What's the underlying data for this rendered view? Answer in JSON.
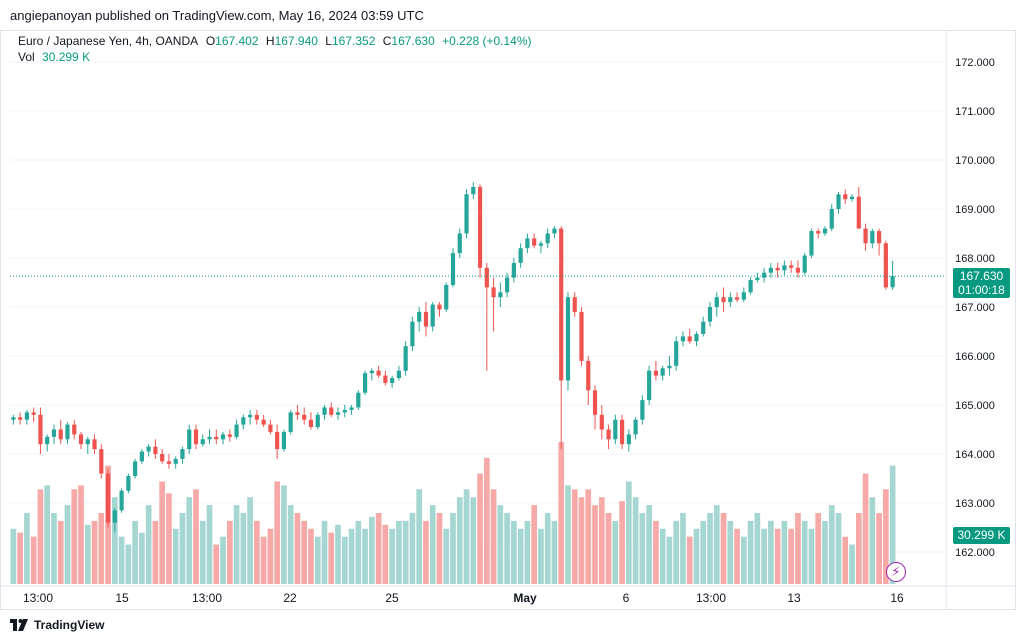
{
  "publish_line": "angiepanoyan published on TradingView.com, May 16, 2024 03:59 UTC",
  "legend": {
    "symbol": "Euro / Japanese Yen, 4h, OANDA",
    "o_label": "O",
    "o_value": "167.402",
    "h_label": "H",
    "h_value": "167.940",
    "l_label": "L",
    "l_value": "167.352",
    "c_label": "C",
    "c_value": "167.630",
    "change": "+0.228 (+0.14%)",
    "vol_label": "Vol",
    "vol_value": "30.299 K"
  },
  "price_axis": {
    "ticks": [
      "172.000",
      "171.000",
      "170.000",
      "169.000",
      "168.000",
      "167.000",
      "166.000",
      "165.000",
      "164.000",
      "163.000",
      "162.000"
    ],
    "current_price": "167.630",
    "countdown": "01:00:18",
    "volume_badge": "30.299 K"
  },
  "time_axis": {
    "labels": [
      "13:00",
      "15",
      "13:00",
      "22",
      "25",
      "May",
      "6",
      "13:00",
      "13",
      "16"
    ]
  },
  "footer": {
    "brand": "TradingView"
  },
  "colors": {
    "up": "#26a69a",
    "down": "#ef5350",
    "vol_up": "#a5d6d2",
    "vol_down": "#f7a9a7",
    "current": "#089981"
  },
  "chart_data": {
    "type": "candlestick",
    "symbol": "EUR/JPY",
    "interval": "4h",
    "ylim": [
      161.9,
      172.4
    ],
    "y_ticks": [
      162,
      163,
      164,
      165,
      166,
      167,
      168,
      169,
      170,
      171,
      172
    ],
    "x_labels": [
      "13:00",
      "15",
      "13:00",
      "22",
      "25",
      "May",
      "6",
      "13:00",
      "13",
      "16"
    ],
    "last_close": 167.63,
    "candles": [
      [
        164.7,
        164.8,
        164.6,
        164.75,
        14
      ],
      [
        164.75,
        164.85,
        164.6,
        164.7,
        13
      ],
      [
        164.7,
        164.9,
        164.6,
        164.85,
        18
      ],
      [
        164.85,
        164.95,
        164.65,
        164.8,
        12
      ],
      [
        164.8,
        164.95,
        164.0,
        164.2,
        24
      ],
      [
        164.2,
        164.4,
        164.05,
        164.35,
        25
      ],
      [
        164.35,
        164.6,
        164.2,
        164.5,
        18
      ],
      [
        164.5,
        164.7,
        164.2,
        164.3,
        16
      ],
      [
        164.3,
        164.65,
        164.2,
        164.6,
        20
      ],
      [
        164.6,
        164.7,
        164.3,
        164.4,
        24
      ],
      [
        164.4,
        164.45,
        164.1,
        164.2,
        25
      ],
      [
        164.2,
        164.35,
        164.0,
        164.3,
        15
      ],
      [
        164.3,
        164.4,
        164.0,
        164.1,
        16
      ],
      [
        164.1,
        164.2,
        163.5,
        163.6,
        18
      ],
      [
        163.6,
        163.7,
        162.5,
        162.6,
        30
      ],
      [
        162.6,
        162.9,
        162.4,
        162.85,
        22
      ],
      [
        162.85,
        163.3,
        162.8,
        163.25,
        12
      ],
      [
        163.25,
        163.6,
        163.2,
        163.55,
        10
      ],
      [
        163.55,
        163.9,
        163.5,
        163.85,
        16
      ],
      [
        163.85,
        164.1,
        163.8,
        164.05,
        13
      ],
      [
        164.05,
        164.2,
        163.95,
        164.15,
        20
      ],
      [
        164.15,
        164.3,
        163.9,
        164.0,
        16
      ],
      [
        164.0,
        164.1,
        163.8,
        163.85,
        26
      ],
      [
        163.85,
        164.0,
        163.7,
        163.8,
        23
      ],
      [
        163.8,
        163.95,
        163.7,
        163.9,
        14
      ],
      [
        163.9,
        164.15,
        163.8,
        164.1,
        18
      ],
      [
        164.1,
        164.6,
        164.0,
        164.5,
        22
      ],
      [
        164.5,
        164.6,
        164.1,
        164.2,
        24
      ],
      [
        164.2,
        164.4,
        164.15,
        164.3,
        16
      ],
      [
        164.3,
        164.5,
        164.2,
        164.35,
        20
      ],
      [
        164.35,
        164.5,
        164.2,
        164.3,
        10
      ],
      [
        164.3,
        164.45,
        164.2,
        164.4,
        12
      ],
      [
        164.4,
        164.5,
        164.25,
        164.35,
        16
      ],
      [
        164.35,
        164.7,
        164.3,
        164.6,
        20
      ],
      [
        164.6,
        164.8,
        164.5,
        164.75,
        18
      ],
      [
        164.75,
        164.9,
        164.6,
        164.8,
        22
      ],
      [
        164.8,
        164.9,
        164.6,
        164.7,
        16
      ],
      [
        164.7,
        164.8,
        164.55,
        164.6,
        12
      ],
      [
        164.6,
        164.7,
        164.4,
        164.45,
        14
      ],
      [
        164.45,
        164.6,
        163.9,
        164.1,
        26
      ],
      [
        164.1,
        164.5,
        164.05,
        164.45,
        25
      ],
      [
        164.45,
        164.9,
        164.4,
        164.85,
        20
      ],
      [
        164.85,
        165.0,
        164.7,
        164.8,
        18
      ],
      [
        164.8,
        164.95,
        164.6,
        164.7,
        16
      ],
      [
        164.7,
        164.85,
        164.5,
        164.55,
        14
      ],
      [
        164.55,
        164.85,
        164.5,
        164.8,
        12
      ],
      [
        164.8,
        165.0,
        164.7,
        164.95,
        16
      ],
      [
        164.95,
        165.05,
        164.75,
        164.8,
        13
      ],
      [
        164.8,
        164.95,
        164.7,
        164.85,
        15
      ],
      [
        164.85,
        165.0,
        164.75,
        164.9,
        12
      ],
      [
        164.9,
        165.0,
        164.8,
        164.95,
        14
      ],
      [
        164.95,
        165.3,
        164.9,
        165.25,
        16
      ],
      [
        165.25,
        165.7,
        165.2,
        165.65,
        14
      ],
      [
        165.65,
        165.75,
        165.5,
        165.7,
        17
      ],
      [
        165.7,
        165.8,
        165.55,
        165.6,
        18
      ],
      [
        165.6,
        165.7,
        165.4,
        165.45,
        15
      ],
      [
        165.45,
        165.6,
        165.35,
        165.55,
        14
      ],
      [
        165.55,
        165.8,
        165.5,
        165.7,
        16
      ],
      [
        165.7,
        166.3,
        165.6,
        166.2,
        16
      ],
      [
        166.2,
        166.8,
        166.1,
        166.7,
        18
      ],
      [
        166.7,
        167.0,
        166.5,
        166.9,
        24
      ],
      [
        166.9,
        167.1,
        166.4,
        166.6,
        16
      ],
      [
        166.6,
        167.1,
        166.5,
        167.05,
        20
      ],
      [
        167.05,
        167.1,
        166.8,
        166.95,
        18
      ],
      [
        166.95,
        167.5,
        166.9,
        167.45,
        14
      ],
      [
        167.45,
        168.2,
        167.4,
        168.1,
        18
      ],
      [
        168.1,
        168.6,
        168.0,
        168.5,
        22
      ],
      [
        168.5,
        169.4,
        168.4,
        169.3,
        24
      ],
      [
        169.3,
        169.55,
        169.2,
        169.45,
        22
      ],
      [
        169.45,
        169.5,
        167.6,
        167.8,
        28
      ],
      [
        167.8,
        167.9,
        165.7,
        167.4,
        32
      ],
      [
        167.4,
        167.6,
        166.5,
        167.2,
        24
      ],
      [
        167.2,
        167.5,
        167.0,
        167.3,
        20
      ],
      [
        167.3,
        167.7,
        167.2,
        167.6,
        18
      ],
      [
        167.6,
        168.0,
        167.5,
        167.9,
        16
      ],
      [
        167.9,
        168.3,
        167.8,
        168.2,
        14
      ],
      [
        168.2,
        168.5,
        168.1,
        168.4,
        16
      ],
      [
        168.4,
        168.5,
        168.2,
        168.25,
        20
      ],
      [
        168.25,
        168.35,
        168.1,
        168.3,
        14
      ],
      [
        168.3,
        168.6,
        168.2,
        168.5,
        18
      ],
      [
        168.5,
        168.65,
        168.4,
        168.6,
        16
      ],
      [
        168.6,
        168.65,
        164.1,
        165.5,
        36
      ],
      [
        165.5,
        167.3,
        165.3,
        167.2,
        25
      ],
      [
        167.2,
        167.3,
        166.8,
        166.9,
        24
      ],
      [
        166.9,
        167.0,
        165.8,
        165.9,
        22
      ],
      [
        165.9,
        166.0,
        165.0,
        165.3,
        24
      ],
      [
        165.3,
        165.4,
        164.5,
        164.8,
        20
      ],
      [
        164.8,
        165.0,
        164.3,
        164.5,
        22
      ],
      [
        164.5,
        164.6,
        164.1,
        164.3,
        18
      ],
      [
        164.3,
        164.8,
        164.2,
        164.7,
        16
      ],
      [
        164.7,
        164.8,
        164.1,
        164.2,
        21
      ],
      [
        164.2,
        164.5,
        164.05,
        164.4,
        26
      ],
      [
        164.4,
        164.75,
        164.3,
        164.7,
        22
      ],
      [
        164.7,
        165.2,
        164.6,
        165.1,
        18
      ],
      [
        165.1,
        165.8,
        165.0,
        165.7,
        20
      ],
      [
        165.7,
        165.9,
        165.5,
        165.6,
        16
      ],
      [
        165.6,
        165.8,
        165.5,
        165.75,
        14
      ],
      [
        165.75,
        166.0,
        165.6,
        165.8,
        12
      ],
      [
        165.8,
        166.4,
        165.7,
        166.3,
        16
      ],
      [
        166.3,
        166.5,
        166.2,
        166.4,
        18
      ],
      [
        166.4,
        166.55,
        166.25,
        166.3,
        12
      ],
      [
        166.3,
        166.5,
        166.2,
        166.45,
        14
      ],
      [
        166.45,
        166.8,
        166.4,
        166.7,
        16
      ],
      [
        166.7,
        167.1,
        166.6,
        167.0,
        18
      ],
      [
        167.0,
        167.3,
        166.8,
        167.2,
        20
      ],
      [
        167.2,
        167.4,
        166.9,
        167.1,
        18
      ],
      [
        167.1,
        167.3,
        167.0,
        167.2,
        16
      ],
      [
        167.2,
        167.3,
        167.1,
        167.15,
        14
      ],
      [
        167.15,
        167.4,
        167.1,
        167.3,
        12
      ],
      [
        167.3,
        167.6,
        167.25,
        167.55,
        16
      ],
      [
        167.55,
        167.7,
        167.5,
        167.6,
        18
      ],
      [
        167.6,
        167.8,
        167.5,
        167.7,
        14
      ],
      [
        167.7,
        167.9,
        167.6,
        167.8,
        16
      ],
      [
        167.8,
        167.9,
        167.6,
        167.75,
        14
      ],
      [
        167.75,
        167.95,
        167.65,
        167.85,
        16
      ],
      [
        167.85,
        167.95,
        167.7,
        167.8,
        14
      ],
      [
        167.8,
        167.95,
        167.6,
        167.7,
        18
      ],
      [
        167.7,
        168.1,
        167.65,
        168.05,
        16
      ],
      [
        168.05,
        168.6,
        168.0,
        168.55,
        14
      ],
      [
        168.55,
        168.6,
        168.4,
        168.5,
        18
      ],
      [
        168.5,
        168.65,
        168.45,
        168.6,
        16
      ],
      [
        168.6,
        169.1,
        168.55,
        169.0,
        20
      ],
      [
        169.0,
        169.35,
        168.9,
        169.3,
        18
      ],
      [
        169.3,
        169.4,
        169.1,
        169.2,
        12
      ],
      [
        169.2,
        169.3,
        169.15,
        169.25,
        10
      ],
      [
        169.25,
        169.45,
        168.6,
        168.6,
        18
      ],
      [
        168.6,
        168.7,
        168.15,
        168.3,
        28
      ],
      [
        168.3,
        168.6,
        168.2,
        168.55,
        22
      ],
      [
        168.55,
        168.6,
        168.05,
        168.3,
        18
      ],
      [
        168.3,
        168.35,
        167.35,
        167.4,
        24
      ],
      [
        167.402,
        167.94,
        167.352,
        167.63,
        30
      ]
    ]
  }
}
